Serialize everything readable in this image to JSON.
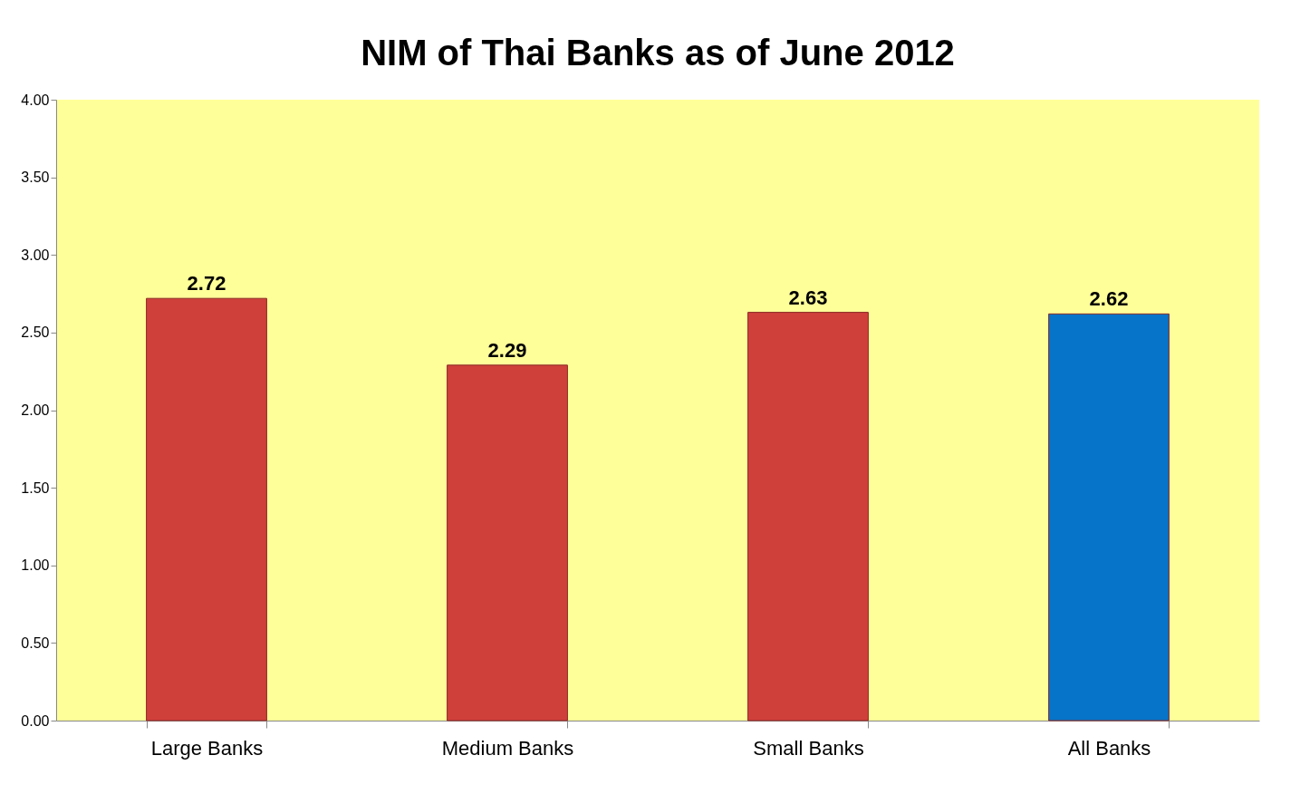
{
  "chart_data": {
    "type": "bar",
    "title": "NIM of Thai Banks as of June 2012",
    "categories": [
      "Large Banks",
      "Medium Banks",
      "Small Banks",
      "All Banks"
    ],
    "values": [
      2.72,
      2.29,
      2.63,
      2.62
    ],
    "colors": [
      "#d0403b",
      "#d0403b",
      "#d0403b",
      "#0674c8"
    ],
    "ylim": [
      0,
      4
    ],
    "yticks": [
      {
        "value": 0,
        "label": "0.00"
      },
      {
        "value": 0.5,
        "label": "0.50"
      },
      {
        "value": 1,
        "label": "1.00"
      },
      {
        "value": 1.5,
        "label": "1.50"
      },
      {
        "value": 2,
        "label": "2.00"
      },
      {
        "value": 2.5,
        "label": "2.50"
      },
      {
        "value": 3,
        "label": "3.00"
      },
      {
        "value": 3.5,
        "label": "3.50"
      },
      {
        "value": 4,
        "label": "4.00"
      }
    ],
    "data_labels": true,
    "grid": false
  }
}
